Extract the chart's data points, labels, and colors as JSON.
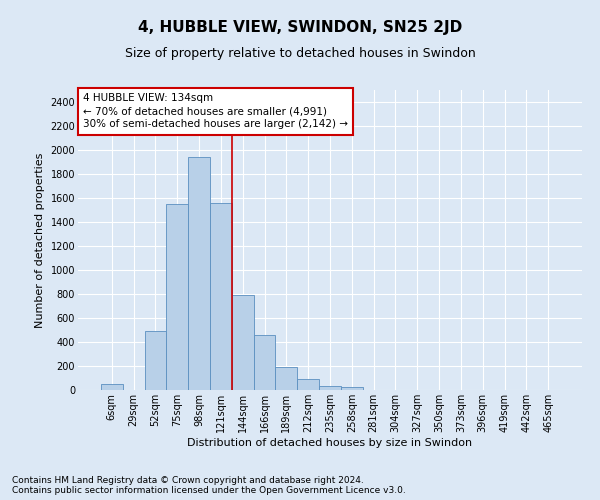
{
  "title": "4, HUBBLE VIEW, SWINDON, SN25 2JD",
  "subtitle": "Size of property relative to detached houses in Swindon",
  "xlabel": "Distribution of detached houses by size in Swindon",
  "ylabel": "Number of detached properties",
  "footnote1": "Contains HM Land Registry data © Crown copyright and database right 2024.",
  "footnote2": "Contains public sector information licensed under the Open Government Licence v3.0.",
  "categories": [
    "6sqm",
    "29sqm",
    "52sqm",
    "75sqm",
    "98sqm",
    "121sqm",
    "144sqm",
    "166sqm",
    "189sqm",
    "212sqm",
    "235sqm",
    "258sqm",
    "281sqm",
    "304sqm",
    "327sqm",
    "350sqm",
    "373sqm",
    "396sqm",
    "419sqm",
    "442sqm",
    "465sqm"
  ],
  "values": [
    50,
    0,
    490,
    1550,
    1940,
    1560,
    790,
    460,
    195,
    95,
    30,
    25,
    0,
    0,
    0,
    0,
    0,
    0,
    0,
    0,
    0
  ],
  "bar_color": "#b8d0e8",
  "bar_edge_color": "#5a8fc0",
  "vline_x": 5.5,
  "vline_color": "#cc0000",
  "annotation_text": "4 HUBBLE VIEW: 134sqm\n← 70% of detached houses are smaller (4,991)\n30% of semi-detached houses are larger (2,142) →",
  "annotation_box_color": "#ffffff",
  "annotation_box_edge_color": "#cc0000",
  "ylim": [
    0,
    2500
  ],
  "yticks": [
    0,
    200,
    400,
    600,
    800,
    1000,
    1200,
    1400,
    1600,
    1800,
    2000,
    2200,
    2400
  ],
  "bg_color": "#dce8f5",
  "plot_bg_color": "#dce8f5",
  "grid_color": "#ffffff",
  "title_fontsize": 11,
  "subtitle_fontsize": 9,
  "axis_label_fontsize": 8,
  "tick_fontsize": 7,
  "annotation_fontsize": 7.5,
  "footnote_fontsize": 6.5
}
